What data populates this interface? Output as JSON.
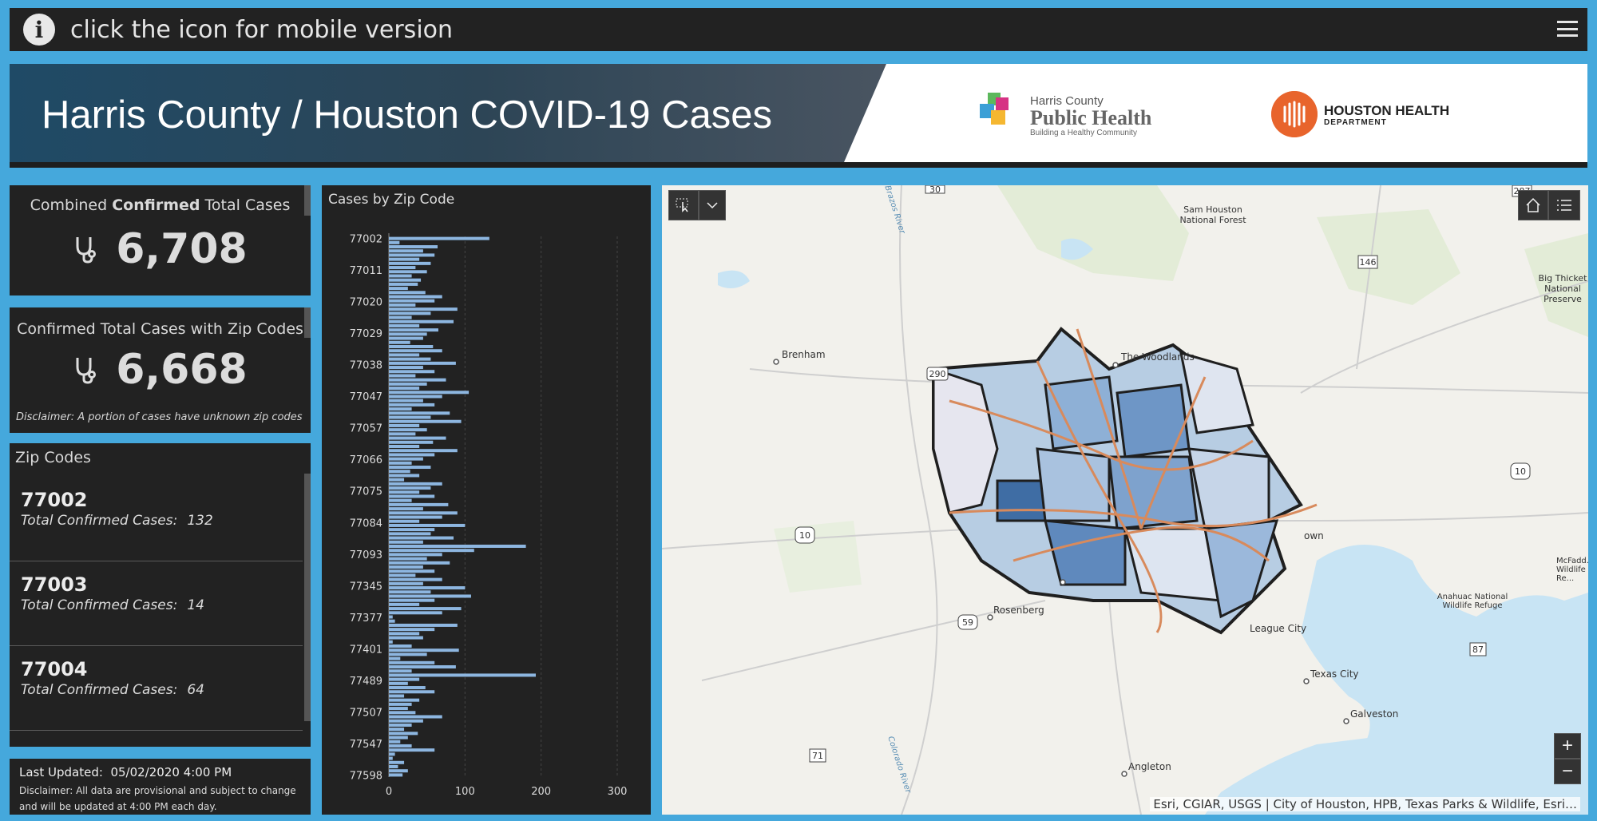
{
  "topbar": {
    "text": "click the icon for mobile version",
    "info_icon": "info-icon",
    "menu_icon": "hamburger-menu-icon"
  },
  "banner": {
    "title": "Harris County / Houston COVID-19 Cases",
    "hcph": {
      "county": "Harris County",
      "name": "Public Health",
      "tagline": "Building a Healthy Community"
    },
    "hhd": {
      "name": "HOUSTON HEALTH",
      "sub": "DEPARTMENT"
    }
  },
  "stat1": {
    "title_prefix": "Combined",
    "title_bold": "Confirmed",
    "title_suffix": "Total Cases",
    "value": "6,708",
    "icon": "stethoscope-icon"
  },
  "stat2": {
    "title": "Confirmed Total Cases with Zip Codes",
    "value": "6,668",
    "disclaimer": "Disclaimer:  A portion of cases have unknown zip codes",
    "icon": "stethoscope-icon"
  },
  "zips": {
    "title": "Zip Codes",
    "label": "Total Confirmed Cases:",
    "items": [
      {
        "code": "77002",
        "cases": "132"
      },
      {
        "code": "77003",
        "cases": "14"
      },
      {
        "code": "77004",
        "cases": "64"
      }
    ]
  },
  "footer": {
    "updated_label": "Last Updated:",
    "updated_value": "05/02/2020 4:00 PM",
    "disclaimer": "Disclaimer: All data are provisional and subject to change and will be updated at 4:00 PM each day."
  },
  "chart_data": {
    "type": "bar",
    "orientation": "horizontal",
    "title": "Cases by Zip Code",
    "xlim": [
      0,
      300
    ],
    "xticks": [
      "0",
      "100",
      "200",
      "300"
    ],
    "tick_categories": [
      "77002",
      "77011",
      "77020",
      "77029",
      "77038",
      "77047",
      "77057",
      "77066",
      "77075",
      "77084",
      "77093",
      "77345",
      "77377",
      "77401",
      "77489",
      "77507",
      "77547",
      "77598"
    ],
    "values": [
      132,
      14,
      64,
      45,
      60,
      40,
      55,
      35,
      50,
      30,
      42,
      38,
      25,
      48,
      70,
      60,
      35,
      90,
      55,
      30,
      85,
      40,
      65,
      50,
      45,
      28,
      58,
      70,
      40,
      55,
      88,
      45,
      60,
      35,
      75,
      50,
      40,
      105,
      70,
      45,
      60,
      30,
      80,
      55,
      95,
      40,
      50,
      35,
      75,
      58,
      40,
      90,
      60,
      45,
      30,
      55,
      28,
      40,
      20,
      70,
      55,
      40,
      60,
      30,
      78,
      45,
      90,
      70,
      40,
      100,
      60,
      55,
      85,
      45,
      180,
      112,
      70,
      50,
      80,
      45,
      60,
      35,
      70,
      45,
      100,
      55,
      108,
      60,
      40,
      95,
      70,
      5,
      8,
      90,
      60,
      40,
      45,
      5,
      30,
      92,
      50,
      15,
      60,
      88,
      30,
      193,
      40,
      25,
      48,
      60,
      20,
      40,
      30,
      25,
      35,
      70,
      45,
      30,
      20,
      38,
      25,
      15,
      30,
      60,
      8,
      5,
      20,
      12,
      25,
      18
    ]
  },
  "map": {
    "labels": [
      "Sam Houston National Forest",
      "Big Thicket National Preserve",
      "Brenham",
      "The Woodlands",
      "Rosenberg",
      "League City",
      "Texas City",
      "Galveston",
      "Angleton",
      "Anahuac National Wildlife Refuge",
      "McFadd... Wildlife Re...",
      "own"
    ],
    "shields": [
      "30",
      "287",
      "146",
      "290",
      "10",
      "10",
      "59",
      "87",
      "71"
    ],
    "rivers": [
      "Brazos River",
      "Colorado River"
    ],
    "attribution": "Esri, CGIAR, USGS | City of Houston, HPB, Texas Parks & Wildlife, Esri…",
    "zoom_in": "+",
    "zoom_out": "−"
  }
}
